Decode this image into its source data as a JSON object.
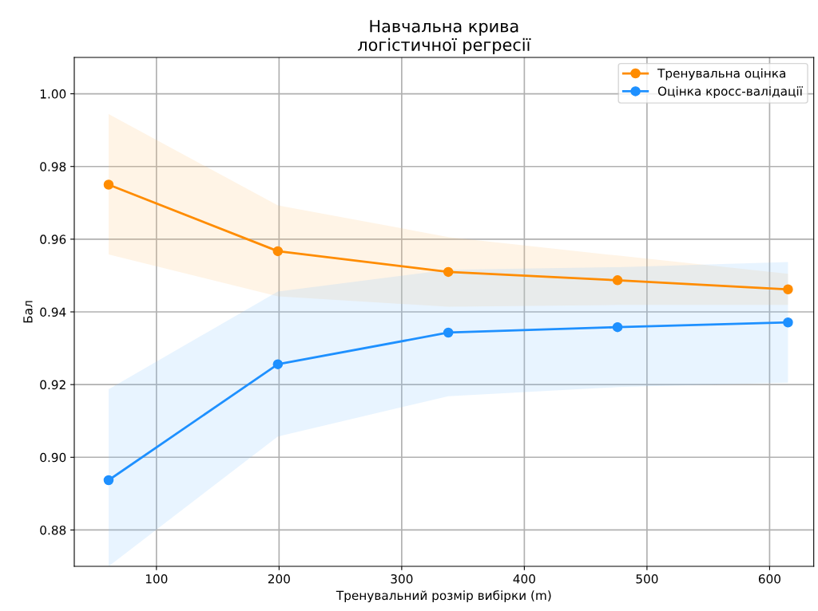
{
  "chart_data": {
    "type": "line",
    "title": "Навчальна крива\nлогістичної регресії",
    "xlabel": "Тренувальний розмір вибірки (m)",
    "ylabel": "Бал",
    "x": [
      61,
      199,
      338,
      476,
      615
    ],
    "series": [
      {
        "name": "Тренувальна оцінка",
        "color": "#ff8c00",
        "values": [
          0.975,
          0.9567,
          0.951,
          0.9487,
          0.9462
        ],
        "lower": [
          0.9558,
          0.9443,
          0.9414,
          0.9419,
          0.9419
        ],
        "upper": [
          0.9944,
          0.9693,
          0.9606,
          0.9555,
          0.9505
        ]
      },
      {
        "name": "Оцінка кросс-валідації",
        "color": "#1e90ff",
        "values": [
          0.8937,
          0.9256,
          0.9343,
          0.9358,
          0.9371
        ],
        "lower": [
          0.87,
          0.9057,
          0.9168,
          0.9193,
          0.9205
        ],
        "upper": [
          0.9187,
          0.9456,
          0.9516,
          0.9523,
          0.9537
        ]
      }
    ],
    "xlim": [
      33,
      636
    ],
    "ylim": [
      0.87,
      1.01
    ],
    "xticks": [
      100,
      200,
      300,
      400,
      500,
      600
    ],
    "yticks": [
      {
        "value": 0.88,
        "label": "0.88"
      },
      {
        "value": 0.9,
        "label": "0.90"
      },
      {
        "value": 0.92,
        "label": "0.92"
      },
      {
        "value": 0.94,
        "label": "0.94"
      },
      {
        "value": 0.96,
        "label": "0.96"
      },
      {
        "value": 0.98,
        "label": "0.98"
      },
      {
        "value": 1.0,
        "label": "1.00"
      }
    ],
    "grid": true,
    "legend": "top right",
    "marker": "circle",
    "line_style": "solid"
  }
}
